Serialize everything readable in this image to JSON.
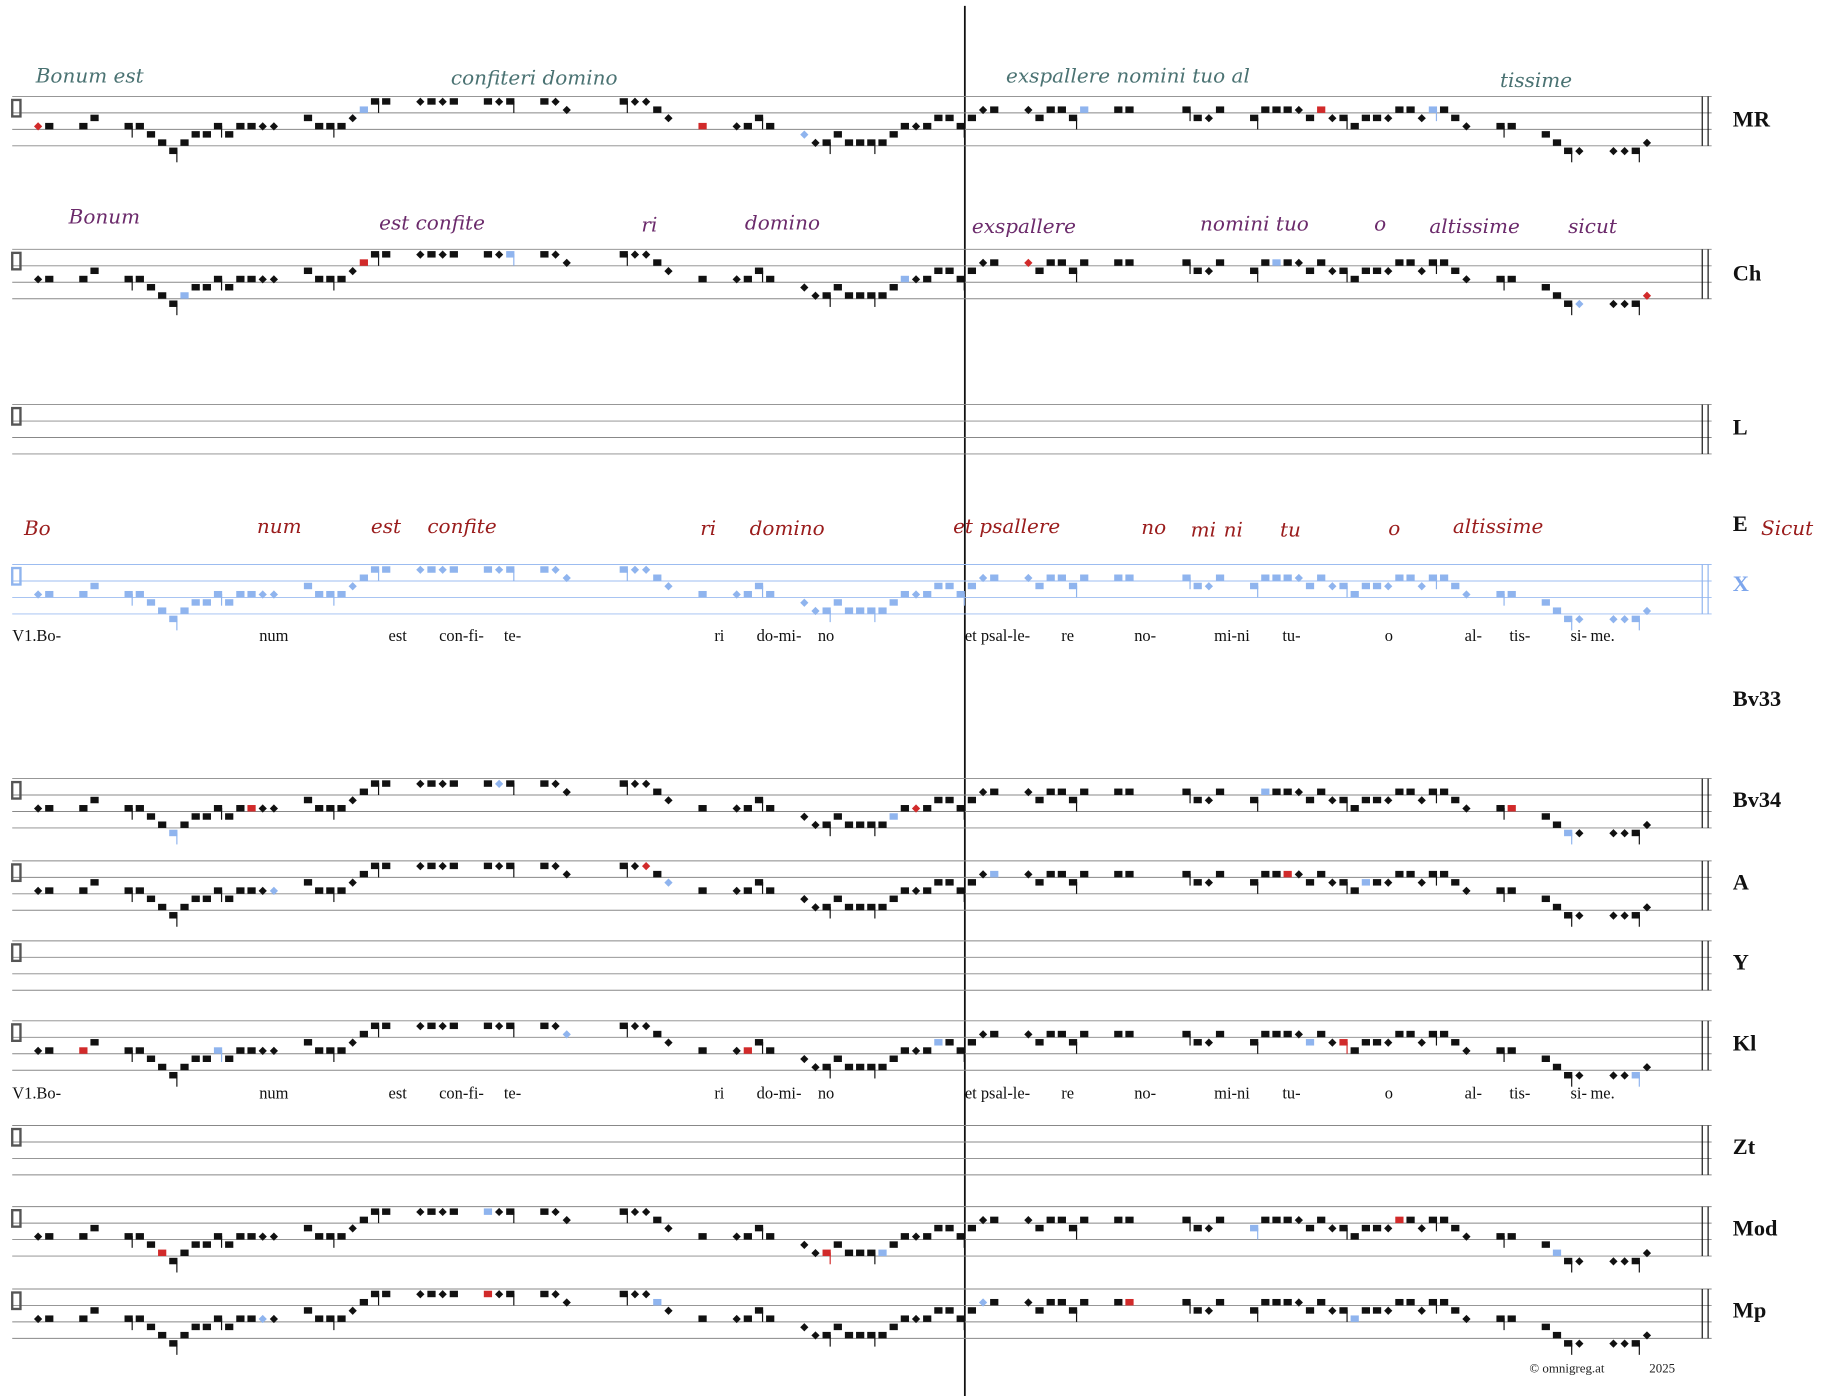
{
  "staves": [
    {
      "label": "MR",
      "text": [
        "Bonum est",
        "confiteri domino",
        "exspallere nomini tuo al",
        "tissime"
      ]
    },
    {
      "label": "Ch",
      "text": [
        "Bonum",
        "est confite",
        "ri",
        "domino",
        "exspallere",
        "nomini tuo",
        "o",
        "altissime",
        "sicut"
      ]
    },
    {
      "label": "L"
    },
    {
      "label": "E",
      "text": [
        "Bo",
        "num",
        "est",
        "confite",
        "ri",
        "domino",
        "et psallere",
        "no",
        "mi",
        "ni",
        "tu",
        "o",
        "altissime",
        "Sicut"
      ]
    },
    {
      "label": "X"
    },
    {
      "label": "Bv33"
    },
    {
      "label": "Bv34"
    },
    {
      "label": "A"
    },
    {
      "label": "Y"
    },
    {
      "label": "Kl"
    },
    {
      "label": "Zt"
    },
    {
      "label": "Mod"
    },
    {
      "label": "Mp"
    }
  ],
  "lyrics": [
    [
      "V1.Bo-",
      "num",
      "est",
      "con-fi-",
      "te-",
      "ri",
      "do-mi-",
      "no",
      "et psal-le-",
      "re",
      "no-",
      "mi-ni",
      "tu-",
      "o",
      "al-",
      "tis-",
      "si-",
      "me."
    ],
    [
      "V1.Bo-",
      "num",
      "est",
      "con-fi-",
      "te-",
      "ri",
      "do-mi-",
      "no",
      "et psal-le-",
      "re",
      "no-",
      "mi-ni",
      "tu-",
      "o",
      "al-",
      "tis-",
      "si-",
      "me."
    ]
  ],
  "footer": {
    "copyright": "© omnigreg.at",
    "year": "2025"
  }
}
